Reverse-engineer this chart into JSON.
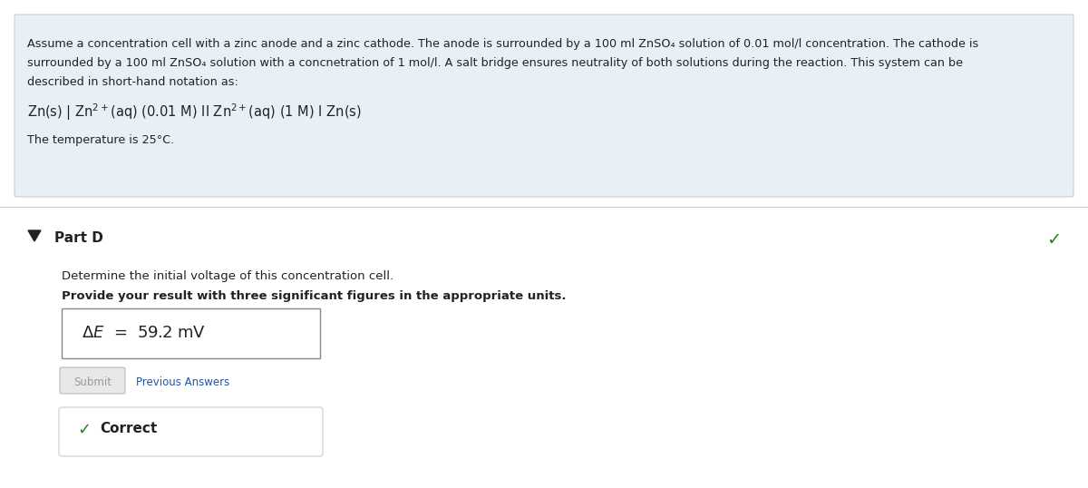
{
  "bg_color": "#f0f4f8",
  "white": "#ffffff",
  "light_blue_bg": "#e8f0f7",
  "border_color": "#cccccc",
  "text_color": "#222222",
  "blue_link_color": "#2255aa",
  "green_color": "#228822",
  "gray_color": "#aaaaaa",
  "header_line1": "Assume a concentration cell with a zinc anode and a zinc cathode. The anode is surrounded by a 100 ml ZnSO₄ solution of 0.01 mol/l concentration. The cathode is",
  "header_line2": "surrounded by a 100 ml ZnSO₄ solution with a concnetration of 1 mol/l. A salt bridge ensures neutrality of both solutions during the reaction. This system can be",
  "header_line3": "described in short-hand notation as:",
  "notation_line": "Zn(s) | Zn$^{2+}$(aq) (0.01 M) II Zn$^{2+}$(aq) (1 M) I Zn(s)",
  "temp_line": "The temperature is 25°C.",
  "part_label": "Part D",
  "question_line1": "Determine the initial voltage of this concentration cell.",
  "question_line2": "Provide your result with three significant figures in the appropriate units.",
  "answer_formula": "$\\Delta E$  =  59.2 mV",
  "submit_label": "Submit",
  "prev_answers_label": "Previous Answers",
  "correct_label": "Correct",
  "figsize": [
    12.0,
    5.38
  ],
  "dpi": 100
}
